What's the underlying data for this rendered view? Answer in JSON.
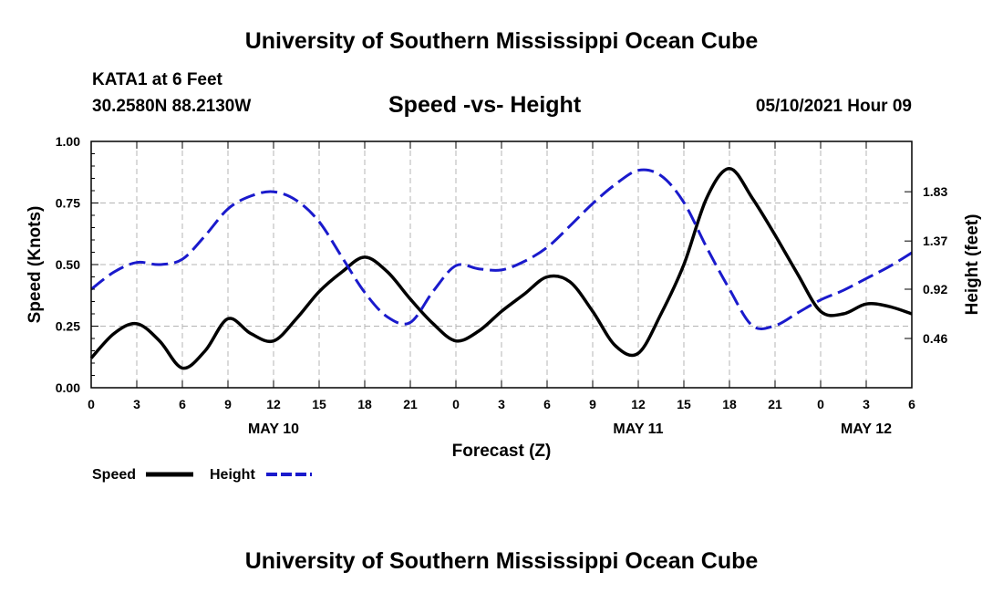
{
  "header": {
    "title": "University of Southern Mississippi Ocean Cube",
    "station": "KATA1 at 6 Feet",
    "coordinates": "30.2580N  88.2130W",
    "chart_title": "Speed -vs- Height",
    "datetime": "05/10/2021 Hour 09"
  },
  "footer": {
    "title": "University of Southern Mississippi Ocean Cube"
  },
  "colors": {
    "speed": "#000000",
    "height": "#1a1acc",
    "grid": "#b4b4b4"
  },
  "chart_data": {
    "type": "line",
    "title": "Speed -vs- Height",
    "xlabel": "Forecast (Z)",
    "ylabel": "Speed (Knots)",
    "y2label": "Height (feet)",
    "xlim": [
      0,
      54
    ],
    "ylim": [
      0,
      1.0
    ],
    "y2lim": [
      0.0,
      2.3
    ],
    "x_ticks": [
      0,
      3,
      6,
      9,
      12,
      15,
      18,
      21,
      24,
      27,
      30,
      33,
      36,
      39,
      42,
      45,
      48,
      51,
      54
    ],
    "x_tick_labels": [
      "0",
      "3",
      "6",
      "9",
      "12",
      "15",
      "18",
      "21",
      "0",
      "3",
      "6",
      "9",
      "12",
      "15",
      "18",
      "21",
      "0",
      "3",
      "6"
    ],
    "y_ticks": [
      0.0,
      0.25,
      0.5,
      0.75,
      1.0
    ],
    "y_tick_labels": [
      "0.00",
      "0.25",
      "0.50",
      "0.75",
      "1.00"
    ],
    "y2_ticks": [
      0.46,
      0.92,
      1.37,
      1.83
    ],
    "y2_tick_labels": [
      "0.46",
      "0.92",
      "1.37",
      "1.83"
    ],
    "date_labels": [
      {
        "text": "MAY 10",
        "x": 12
      },
      {
        "text": "MAY 11",
        "x": 36
      },
      {
        "text": "MAY 12",
        "x": 51
      }
    ],
    "series": [
      {
        "name": "Speed",
        "axis": "left",
        "style": "solid",
        "x": [
          0,
          1.5,
          3,
          4.5,
          6,
          7.5,
          9,
          10.5,
          12,
          13.5,
          15,
          16.5,
          18,
          19.5,
          21,
          22.5,
          24,
          25.5,
          27,
          28.5,
          30,
          31.5,
          33,
          34.5,
          36,
          37.5,
          39,
          40.5,
          42,
          43.5,
          45,
          46.5,
          48,
          49.5,
          51,
          52.5,
          54
        ],
        "values": [
          0.12,
          0.22,
          0.26,
          0.19,
          0.08,
          0.15,
          0.28,
          0.22,
          0.19,
          0.28,
          0.39,
          0.47,
          0.53,
          0.47,
          0.36,
          0.26,
          0.19,
          0.23,
          0.31,
          0.38,
          0.45,
          0.43,
          0.31,
          0.17,
          0.14,
          0.3,
          0.5,
          0.77,
          0.89,
          0.77,
          0.62,
          0.46,
          0.31,
          0.3,
          0.34,
          0.33,
          0.3
        ]
      },
      {
        "name": "Height",
        "axis": "right",
        "style": "dashed",
        "x": [
          0,
          1.5,
          3,
          4.5,
          6,
          7.5,
          9,
          10.5,
          12,
          13.5,
          15,
          16.5,
          18,
          19.5,
          21,
          22.5,
          24,
          25.5,
          27,
          28.5,
          30,
          31.5,
          33,
          34.5,
          36,
          37.5,
          39,
          40.5,
          42,
          43.5,
          45,
          46.5,
          48,
          49.5,
          51,
          52.5,
          54
        ],
        "values": [
          0.92,
          1.08,
          1.17,
          1.15,
          1.2,
          1.42,
          1.67,
          1.79,
          1.83,
          1.75,
          1.55,
          1.22,
          0.89,
          0.66,
          0.61,
          0.9,
          1.14,
          1.11,
          1.1,
          1.18,
          1.31,
          1.51,
          1.72,
          1.9,
          2.03,
          1.98,
          1.73,
          1.31,
          0.92,
          0.58,
          0.58,
          0.7,
          0.82,
          0.91,
          1.02,
          1.13,
          1.26
        ]
      }
    ],
    "legend": {
      "speed_label": "Speed",
      "height_label": "Height",
      "placement": "bottom-left"
    }
  }
}
